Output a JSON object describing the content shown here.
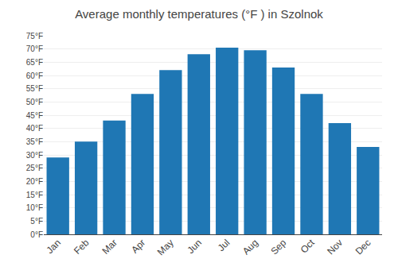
{
  "chart_data": {
    "type": "bar",
    "title": "Average monthly temperatures (°F ) in Szolnok",
    "categories": [
      "Jan",
      "Feb",
      "Mar",
      "Apr",
      "May",
      "Jun",
      "Jul",
      "Aug",
      "Sep",
      "Oct",
      "Nov",
      "Dec"
    ],
    "values": [
      29,
      35,
      43,
      53,
      62,
      68,
      70.5,
      69.5,
      63,
      53,
      42,
      33
    ],
    "ylim": [
      0,
      75
    ],
    "yticks": [
      {
        "value": 0,
        "label": "0°F"
      },
      {
        "value": 5,
        "label": "5°F"
      },
      {
        "value": 10,
        "label": "10°F"
      },
      {
        "value": 15,
        "label": "15°F"
      },
      {
        "value": 20,
        "label": "20°F"
      },
      {
        "value": 25,
        "label": "25°F"
      },
      {
        "value": 30,
        "label": "30°F"
      },
      {
        "value": 35,
        "label": "35°F"
      },
      {
        "value": 40,
        "label": "40°F"
      },
      {
        "value": 45,
        "label": "45°F"
      },
      {
        "value": 50,
        "label": "50°F"
      },
      {
        "value": 55,
        "label": "55°F"
      },
      {
        "value": 60,
        "label": "60°F"
      },
      {
        "value": 65,
        "label": "65°F"
      },
      {
        "value": 70,
        "label": "70°F"
      },
      {
        "value": 75,
        "label": "75°F"
      }
    ],
    "grid": true
  }
}
